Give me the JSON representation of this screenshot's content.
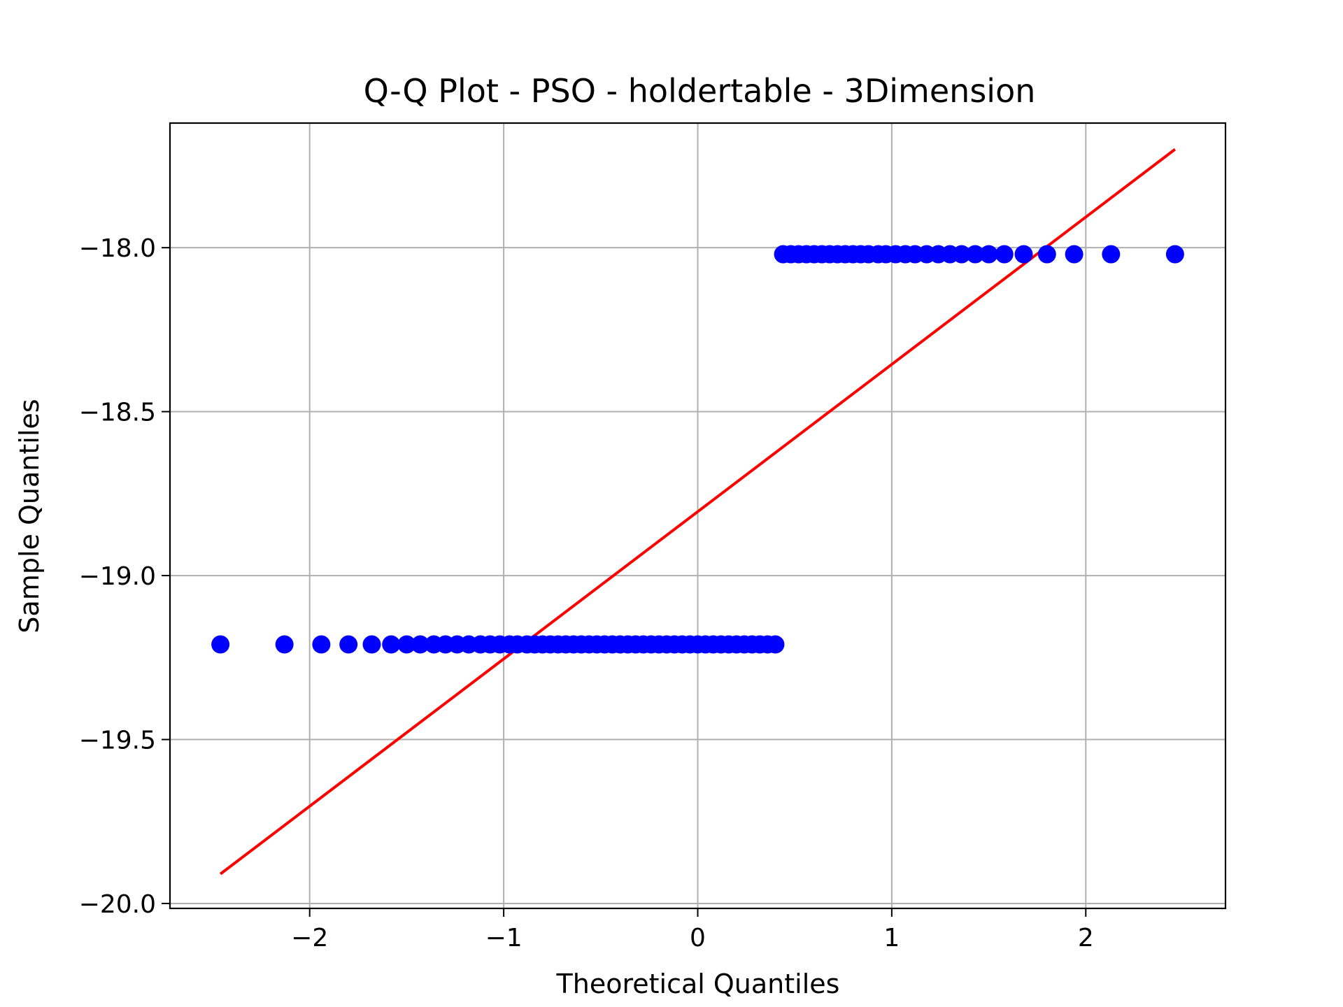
{
  "chart_data": {
    "type": "scatter",
    "title": "Q-Q Plot - PSO - holdertable - 3Dimension",
    "xlabel": "Theoretical Quantiles",
    "ylabel": "Sample Quantiles",
    "xlim": [
      -2.72,
      2.72
    ],
    "ylim": [
      -20.015,
      -17.62
    ],
    "xticks": [
      -2,
      -1,
      0,
      1,
      2
    ],
    "xtick_labels": [
      "−2",
      "−1",
      "0",
      "1",
      "2"
    ],
    "yticks": [
      -20.0,
      -19.5,
      -19.0,
      -18.5,
      -18.0
    ],
    "ytick_labels": [
      "−20.0",
      "−19.5",
      "−19.0",
      "−18.5",
      "−18.0"
    ],
    "grid": true,
    "legend": "none",
    "marker_color": "#0000ff",
    "line_color": "#ff0000",
    "series": [
      {
        "kind": "points",
        "x": [
          -2.46,
          -2.13,
          -1.94,
          -1.8,
          -1.68,
          -1.58,
          -1.5,
          -1.43,
          -1.36,
          -1.3,
          -1.24,
          -1.18,
          -1.12,
          -1.07,
          -1.02,
          -0.97,
          -0.93,
          -0.88,
          -0.84,
          -0.8,
          -0.76,
          -0.72,
          -0.68,
          -0.64,
          -0.6,
          -0.56,
          -0.52,
          -0.48,
          -0.44,
          -0.4,
          -0.36,
          -0.32,
          -0.28,
          -0.24,
          -0.2,
          -0.16,
          -0.12,
          -0.08,
          -0.04,
          0.0,
          0.04,
          0.08,
          0.12,
          0.16,
          0.2,
          0.24,
          0.28,
          0.32,
          0.36,
          0.4
        ],
        "y": [
          -19.21,
          -19.21,
          -19.21,
          -19.21,
          -19.21,
          -19.21,
          -19.21,
          -19.21,
          -19.21,
          -19.21,
          -19.21,
          -19.21,
          -19.21,
          -19.21,
          -19.21,
          -19.21,
          -19.21,
          -19.21,
          -19.21,
          -19.21,
          -19.21,
          -19.21,
          -19.21,
          -19.21,
          -19.21,
          -19.21,
          -19.21,
          -19.21,
          -19.21,
          -19.21,
          -19.21,
          -19.21,
          -19.21,
          -19.21,
          -19.21,
          -19.21,
          -19.21,
          -19.21,
          -19.21,
          -19.21,
          -19.21,
          -19.21,
          -19.21,
          -19.21,
          -19.21,
          -19.21,
          -19.21,
          -19.21,
          -19.21,
          -19.21
        ]
      },
      {
        "kind": "points",
        "x": [
          0.44,
          0.48,
          0.52,
          0.56,
          0.6,
          0.64,
          0.68,
          0.72,
          0.76,
          0.8,
          0.84,
          0.88,
          0.93,
          0.97,
          1.02,
          1.07,
          1.12,
          1.18,
          1.24,
          1.3,
          1.36,
          1.43,
          1.5,
          1.58,
          1.68,
          1.8,
          1.94,
          2.13,
          2.46
        ],
        "y": [
          -18.02,
          -18.02,
          -18.02,
          -18.02,
          -18.02,
          -18.02,
          -18.02,
          -18.02,
          -18.02,
          -18.02,
          -18.02,
          -18.02,
          -18.02,
          -18.02,
          -18.02,
          -18.02,
          -18.02,
          -18.02,
          -18.02,
          -18.02,
          -18.02,
          -18.02,
          -18.02,
          -18.02,
          -18.02,
          -18.02,
          -18.02,
          -18.02,
          -18.02
        ]
      },
      {
        "kind": "reference-line",
        "x": [
          -2.46,
          2.46
        ],
        "y": [
          -19.91,
          -17.7
        ]
      }
    ]
  }
}
